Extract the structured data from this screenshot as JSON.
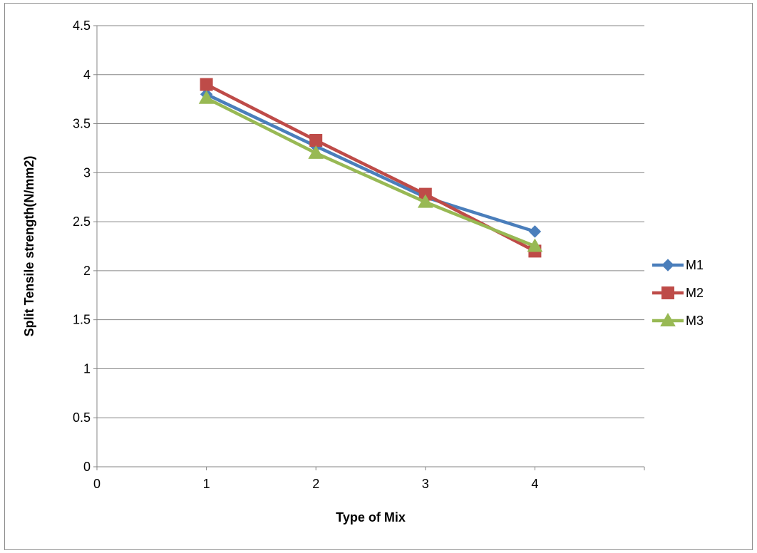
{
  "chart_data": {
    "type": "line",
    "title": "",
    "xlabel": "Type of Mix",
    "ylabel": "Split Tensile strength(N/mm2)",
    "xlim": [
      0,
      5
    ],
    "ylim": [
      0,
      4.5
    ],
    "x_ticks": [
      0,
      1,
      2,
      3,
      4
    ],
    "x_tick_labels": [
      "0",
      "1",
      "2",
      "3",
      "4"
    ],
    "y_ticks": [
      0,
      0.5,
      1,
      1.5,
      2,
      2.5,
      3,
      3.5,
      4,
      4.5
    ],
    "y_tick_labels": [
      "0",
      "0.5",
      "1",
      "1.5",
      "2",
      "2.5",
      "3",
      "3.5",
      "4",
      "4.5"
    ],
    "grid": "horizontal",
    "legend_position": "right",
    "x": [
      1,
      2,
      3,
      4
    ],
    "series": [
      {
        "name": "M1",
        "values": [
          3.8,
          3.27,
          2.75,
          2.4
        ],
        "color": "#4a7ebb",
        "marker": "diamond"
      },
      {
        "name": "M2",
        "values": [
          3.9,
          3.33,
          2.78,
          2.2
        ],
        "color": "#be4b48",
        "marker": "square"
      },
      {
        "name": "M3",
        "values": [
          3.76,
          3.2,
          2.7,
          2.25
        ],
        "color": "#98b954",
        "marker": "triangle"
      }
    ]
  }
}
